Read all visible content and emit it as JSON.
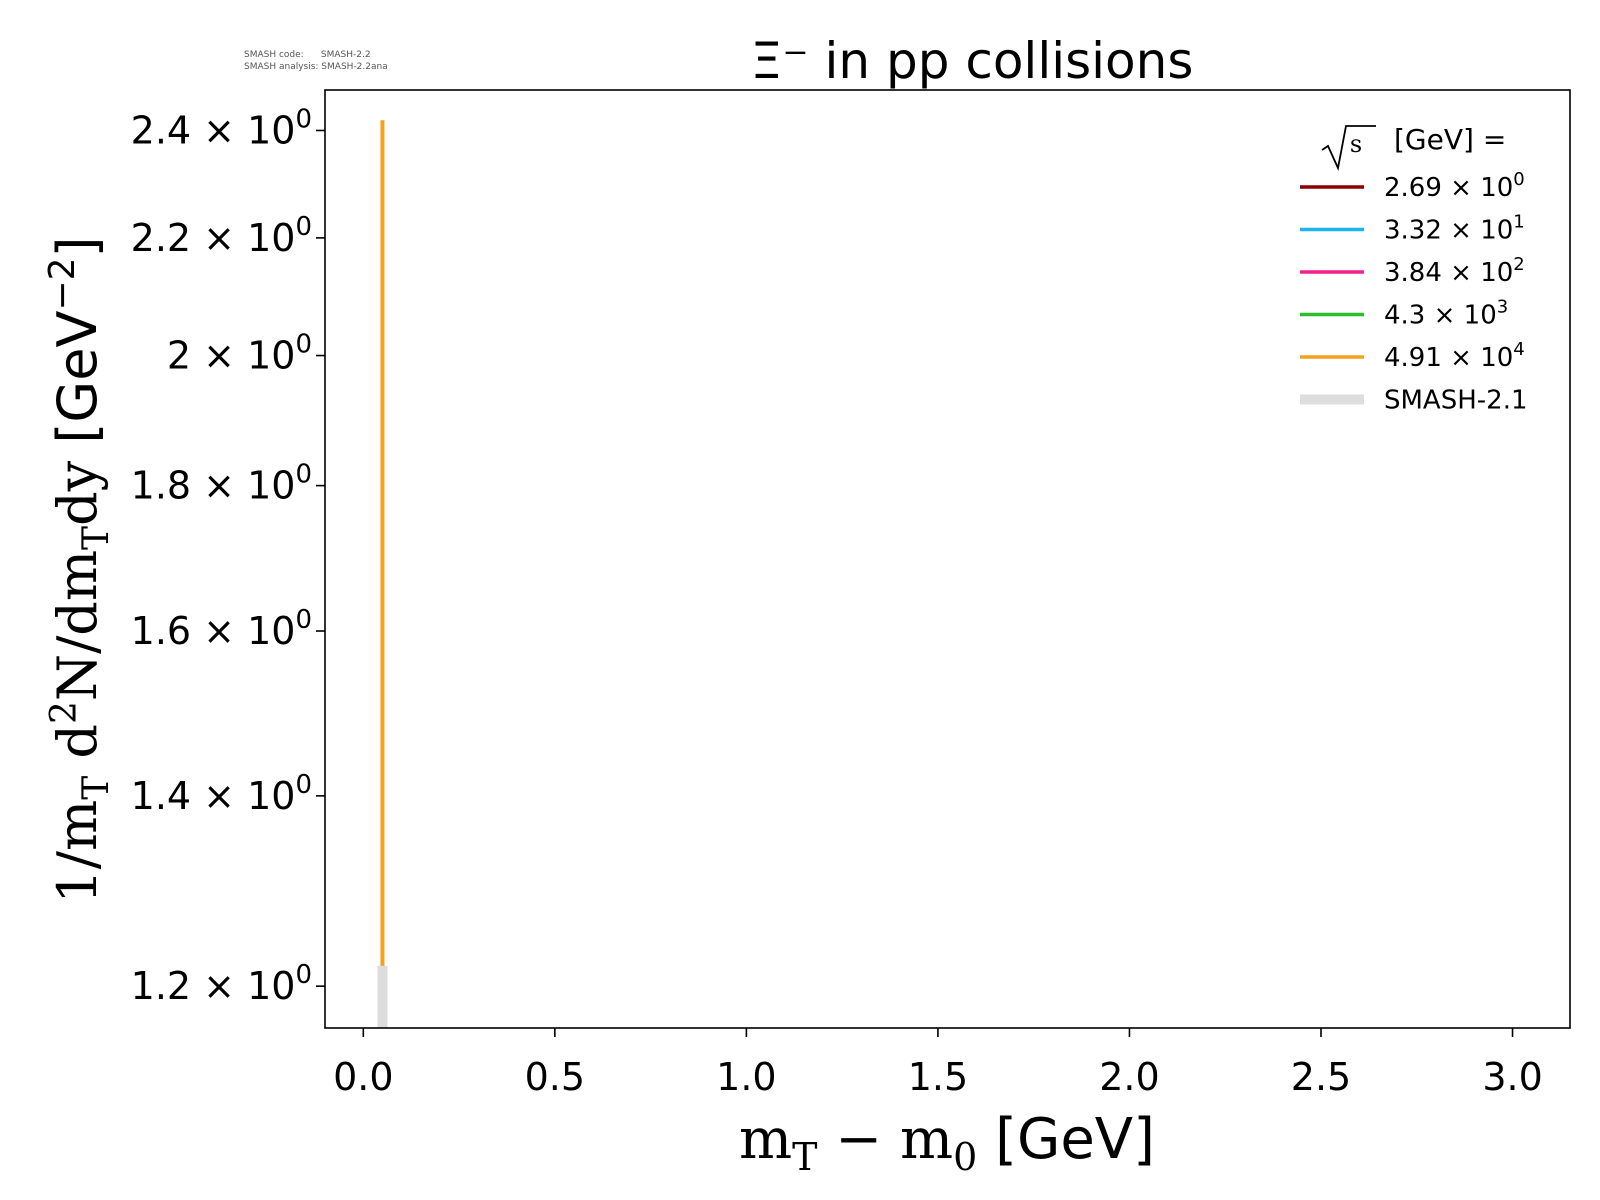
{
  "header": {
    "version_line1": "SMASH code:      SMASH-2.2",
    "version_line2": "SMASH analysis: SMASH-2.2ana"
  },
  "chart_data": {
    "type": "line",
    "title": "Ξ⁻ in pp collisions",
    "xlabel": {
      "main": "m",
      "sub": "T",
      "rest": " − m",
      "sub2": "0",
      "unit": " [GeV]"
    },
    "ylabel": {
      "text": "1/m_T d²N/dm_Tdy [GeV⁻²]"
    },
    "y_scale": "log",
    "xlim": [
      -0.1,
      3.15
    ],
    "ylim": [
      1.16,
      2.48
    ],
    "x_ticks": [
      {
        "value": 0.0,
        "label": "0.0"
      },
      {
        "value": 0.5,
        "label": "0.5"
      },
      {
        "value": 1.0,
        "label": "1.0"
      },
      {
        "value": 1.5,
        "label": "1.5"
      },
      {
        "value": 2.0,
        "label": "2.0"
      },
      {
        "value": 2.5,
        "label": "2.5"
      },
      {
        "value": 3.0,
        "label": "3.0"
      }
    ],
    "y_ticks": [
      {
        "value": 1.2,
        "mant": "1.2",
        "exp": "0"
      },
      {
        "value": 1.4,
        "mant": "1.4",
        "exp": "0"
      },
      {
        "value": 1.6,
        "mant": "1.6",
        "exp": "0"
      },
      {
        "value": 1.8,
        "mant": "1.8",
        "exp": "0"
      },
      {
        "value": 2.0,
        "mant": "2",
        "exp": "0"
      },
      {
        "value": 2.2,
        "mant": "2.2",
        "exp": "0"
      },
      {
        "value": 2.4,
        "mant": "2.4",
        "exp": "0"
      }
    ],
    "legend": {
      "placement": "top-right",
      "title": "[GeV] =",
      "title_symbol": "s"
    },
    "series": [
      {
        "name": "2.69",
        "exp": "0",
        "color": "#8b0000",
        "x": [],
        "y": []
      },
      {
        "name": "3.32",
        "exp": "1",
        "color": "#1eb4f0",
        "x": [],
        "y": []
      },
      {
        "name": "3.84",
        "exp": "2",
        "color": "#f0208c",
        "x": [],
        "y": []
      },
      {
        "name": "4.3",
        "exp": "3",
        "color": "#2dbe2d",
        "x": [],
        "y": []
      },
      {
        "name": "4.91",
        "exp": "4",
        "color": "#f5a01e",
        "x": [
          0.05,
          0.05
        ],
        "y": [
          1.16,
          2.42
        ]
      },
      {
        "name": "SMASH-2.1",
        "exp": "",
        "color": "#dddddd",
        "reference": true,
        "x": [
          0.05,
          0.05
        ],
        "y": [
          1.16,
          1.22
        ]
      }
    ]
  }
}
